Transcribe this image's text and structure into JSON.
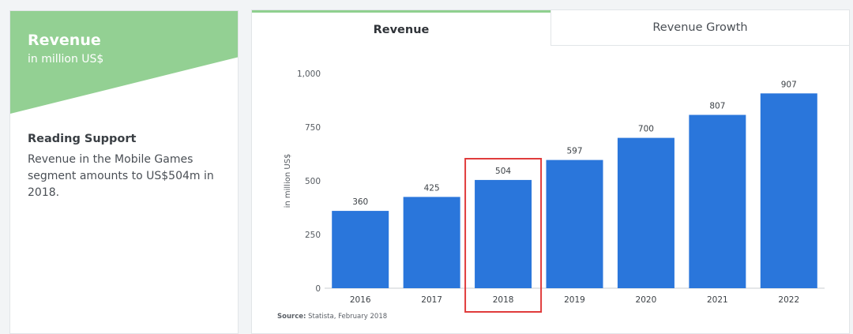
{
  "info": {
    "title": "Revenue",
    "unit": "in million US$",
    "reading_heading": "Reading Support",
    "reading_text": "Revenue in the Mobile Games segment amounts to US$504m in 2018."
  },
  "tabs": [
    {
      "label": "Revenue",
      "active": true
    },
    {
      "label": "Revenue Growth",
      "active": false
    }
  ],
  "source": {
    "label": "Source:",
    "text": "Statista, February 2018"
  },
  "colors": {
    "bar": "#2a76db",
    "accent": "#93d093",
    "highlight": "#e03c3c"
  },
  "chart_data": {
    "type": "bar",
    "categories": [
      "2016",
      "2017",
      "2018",
      "2019",
      "2020",
      "2021",
      "2022"
    ],
    "values": [
      360,
      425,
      504,
      597,
      700,
      807,
      907
    ],
    "title": "Revenue",
    "ylabel": "in million US$",
    "ylim": [
      0,
      1000
    ],
    "yticks": [
      0,
      250,
      500,
      750,
      1000
    ],
    "ytick_labels": [
      "0",
      "250",
      "500",
      "750",
      "1,000"
    ],
    "highlighted_category": "2018",
    "grid": false,
    "legend": "none"
  }
}
